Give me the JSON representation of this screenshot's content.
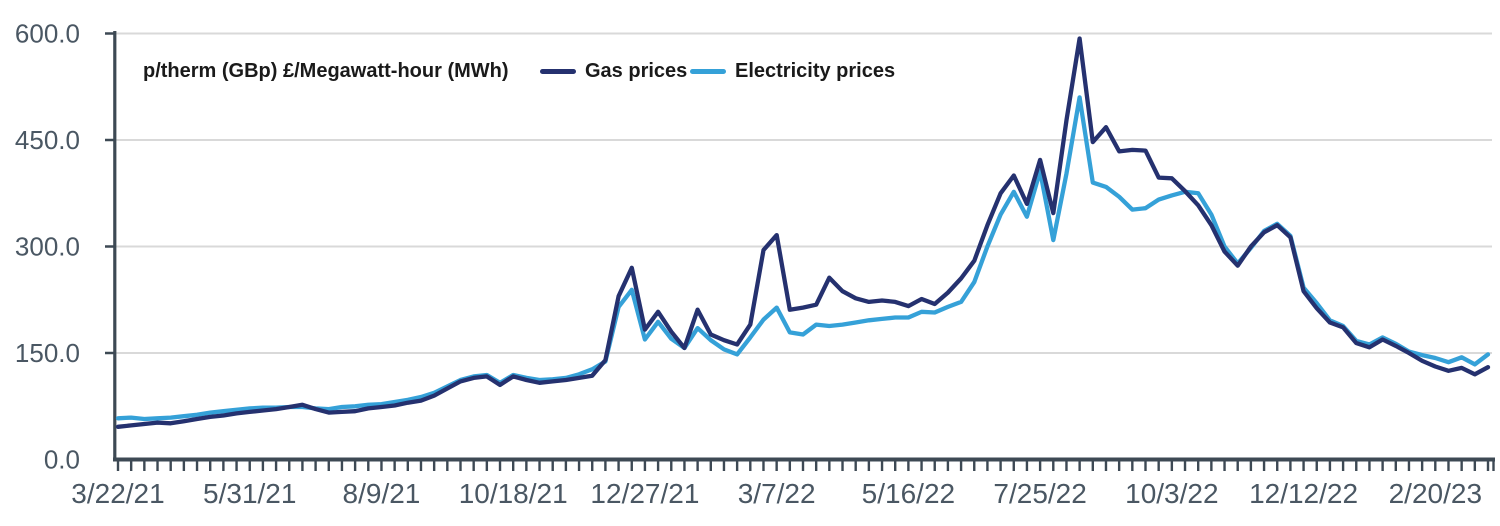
{
  "page": {
    "background": "#ffffff"
  },
  "chart_data": {
    "type": "line",
    "title": "p/therm (GBp) £/Megawatt-hour (MWh)",
    "legend_position": "top",
    "grid": "horizontal",
    "x_frequency": "weekly",
    "n_points": 105,
    "x_ticks_every_n_points": 10,
    "x_tick_labels": [
      "3/22/21",
      "5/31/21",
      "8/9/21",
      "10/18/21",
      "12/27/21",
      "3/7/22",
      "5/16/22",
      "7/25/22",
      "10/3/22",
      "12/12/22",
      "2/20/23"
    ],
    "ylim": [
      0,
      600
    ],
    "y_ticks": [
      0,
      150,
      300,
      450,
      600
    ],
    "y_tick_labels": [
      "0.0",
      "150.0",
      "300.0",
      "450.0",
      "600.0"
    ],
    "series": [
      {
        "name": "Gas prices",
        "unit": "p/therm (GBp)",
        "color": "#25316f",
        "values": [
          46,
          48,
          50,
          52,
          51,
          54,
          57,
          60,
          62,
          65,
          67,
          69,
          71,
          74,
          77,
          71,
          66,
          67,
          68,
          72,
          74,
          76,
          80,
          83,
          90,
          100,
          110,
          115,
          117,
          105,
          117,
          112,
          108,
          110,
          112,
          115,
          118,
          140,
          230,
          270,
          183,
          208,
          180,
          157,
          211,
          176,
          168,
          162,
          190,
          295,
          316,
          211,
          214,
          218,
          256,
          237,
          227,
          222,
          224,
          222,
          216,
          226,
          219,
          235,
          255,
          280,
          330,
          375,
          400,
          360,
          422,
          347,
          478,
          593,
          447,
          468,
          434,
          436,
          435,
          397,
          396,
          378,
          358,
          330,
          293,
          273,
          300,
          320,
          330,
          313,
          237,
          213,
          193,
          186,
          164,
          158,
          169,
          160,
          150,
          139,
          131,
          125,
          129,
          120,
          130
        ]
      },
      {
        "name": "Electricity prices",
        "unit": "£/MWh",
        "color": "#35a1d8",
        "values": [
          58,
          59,
          57,
          58,
          59,
          61,
          63,
          66,
          68,
          70,
          72,
          73,
          73,
          74,
          74,
          72,
          71,
          74,
          75,
          77,
          78,
          81,
          84,
          88,
          94,
          103,
          112,
          117,
          119,
          108,
          119,
          115,
          112,
          113,
          115,
          120,
          127,
          138,
          215,
          239,
          169,
          194,
          170,
          157,
          185,
          168,
          155,
          148,
          172,
          197,
          214,
          179,
          176,
          190,
          188,
          190,
          193,
          196,
          198,
          200,
          200,
          208,
          207,
          215,
          222,
          250,
          300,
          345,
          377,
          342,
          406,
          309,
          403,
          510,
          390,
          384,
          370,
          352,
          354,
          366,
          372,
          377,
          375,
          345,
          300,
          276,
          298,
          322,
          332,
          315,
          242,
          220,
          196,
          188,
          167,
          162,
          172,
          163,
          152,
          147,
          143,
          137,
          144,
          134,
          148
        ]
      }
    ],
    "style": {
      "axis_color": "#3d4954",
      "grid_color": "#d9d9d9",
      "tick_label_color": "#4a5763"
    }
  }
}
